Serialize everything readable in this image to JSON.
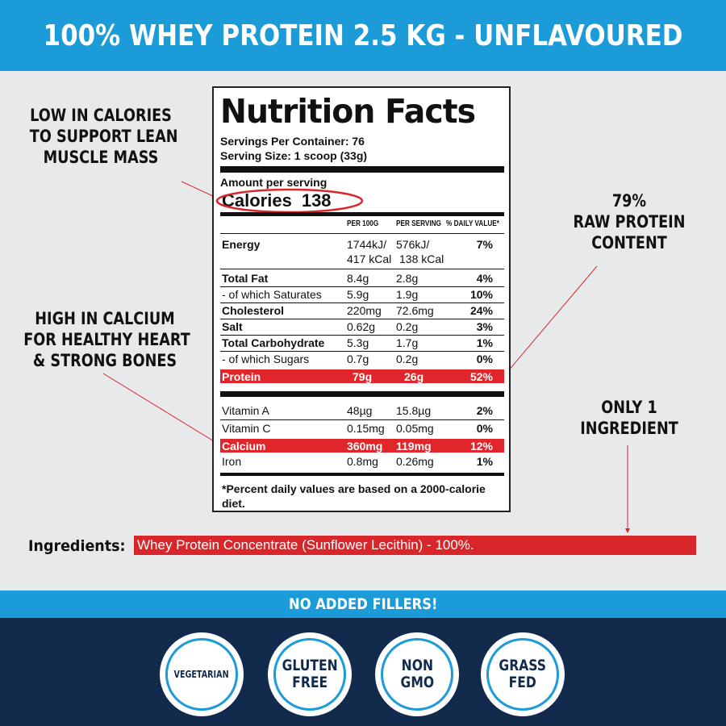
{
  "header": {
    "title": "100% WHEY PROTEIN 2.5 KG - UNFLAVOURED"
  },
  "callouts": {
    "calories": [
      "LOW IN CALORIES",
      "TO SUPPORT LEAN",
      "MUSCLE MASS"
    ],
    "calcium": [
      "HIGH IN CALCIUM",
      "FOR HEALTHY HEART",
      "& STRONG BONES"
    ],
    "protein": [
      "79%",
      "RAW PROTEIN",
      "CONTENT"
    ],
    "ingredient": [
      "ONLY 1",
      "INGREDIENT"
    ]
  },
  "label": {
    "title": "Nutrition Facts",
    "servings_per_container": "Servings Per Container: 76",
    "serving_size": "Serving Size: 1 scoop (33g)",
    "amount_per_serving": "Amount per serving",
    "calories_label": "Calories",
    "calories_value": "138",
    "columns": {
      "per100": "PER 100G",
      "perserving": "PER SERVING",
      "dv": "% DAILY VALUE*"
    },
    "energy": {
      "name": "Energy",
      "per100_line1": "1744kJ/",
      "per100_line2": "417 kCal",
      "serving_line1": "576kJ/",
      "serving_line2": "138 kCal",
      "dv": "7%"
    },
    "nutrients": [
      {
        "name": "Total Fat",
        "per100": "8.4g",
        "serving": "2.8g",
        "dv": "4%"
      },
      {
        "name": "- of which Saturates",
        "per100": "5.9g",
        "serving": "1.9g",
        "dv": "10%"
      },
      {
        "name": "Cholesterol",
        "per100": "220mg",
        "serving": "72.6mg",
        "dv": "24%"
      },
      {
        "name": "Salt",
        "per100": "0.62g",
        "serving": "0.2g",
        "dv": "3%"
      },
      {
        "name": "Total Carbohydrate",
        "per100": "5.3g",
        "serving": "1.7g",
        "dv": "1%"
      },
      {
        "name": "- of which Sugars",
        "per100": "0.7g",
        "serving": "0.2g",
        "dv": "0%"
      },
      {
        "name": "Protein",
        "per100": "79g",
        "serving": "26g",
        "dv": "52%"
      }
    ],
    "vitamins": [
      {
        "name": "Vitamin A",
        "per100": "48µg",
        "serving": "15.8µg",
        "dv": "2%"
      },
      {
        "name": "Vitamin C",
        "per100": "0.15mg",
        "serving": "0.05mg",
        "dv": "0%"
      },
      {
        "name": "Calcium",
        "per100": "360mg",
        "serving": "119mg",
        "dv": "12%"
      },
      {
        "name": "Iron",
        "per100": "0.8mg",
        "serving": "0.26mg",
        "dv": "1%"
      }
    ],
    "footnote": "*Percent daily values are based on a 2000-calorie diet."
  },
  "ingredients": {
    "label": "Ingredients:",
    "value": "Whey Protein Concentrate (Sunflower Lecithin) - 100%."
  },
  "fillers": "NO ADDED FILLERS!",
  "badges": [
    {
      "lines": [
        "VEGETARIAN"
      ]
    },
    {
      "lines": [
        "GLUTEN",
        "FREE"
      ]
    },
    {
      "lines": [
        "NON",
        "GMO"
      ]
    },
    {
      "lines": [
        "GRASS",
        "FED"
      ]
    }
  ],
  "colors": {
    "header_blue": "#1b9bd7",
    "navy": "#122a4c",
    "highlight_red": "#e0262b",
    "background": "#e8e9ea"
  }
}
